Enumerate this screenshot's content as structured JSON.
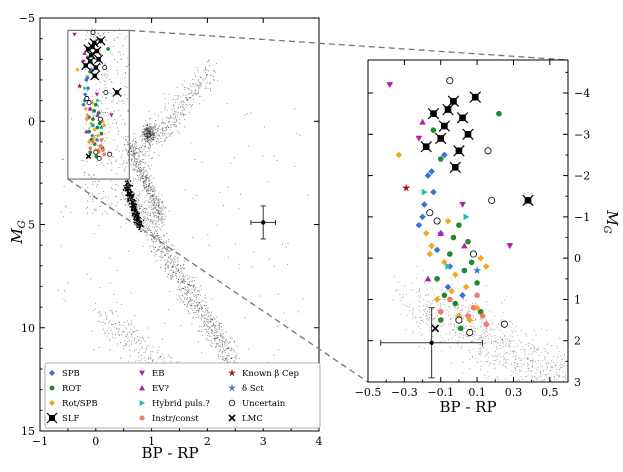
{
  "chart_data": [
    {
      "type": "scatter",
      "title": "",
      "xlabel": "BP - RP",
      "ylabel": "M_G",
      "xlim": [
        -1,
        4
      ],
      "ylim": [
        15,
        -5
      ],
      "x_ticks": [
        "−1",
        "0",
        "1",
        "2",
        "3",
        "4"
      ],
      "y_ticks": [
        "−5",
        "0",
        "5",
        "10",
        "15"
      ],
      "zoom_box": {
        "x": [
          -0.5,
          0.6
        ],
        "y": [
          -4.4,
          2.8
        ]
      },
      "error_bar": {
        "x": 3.0,
        "y": 4.9,
        "xerr": 0.22,
        "yerr": 0.8
      },
      "background": "Gaia color-magnitude diagram field stars (small black dots)"
    },
    {
      "type": "scatter",
      "title": "",
      "xlabel": "BP - RP",
      "ylabel": "M_G",
      "xlim": [
        -0.5,
        0.6
      ],
      "ylim": [
        3,
        -4.8
      ],
      "x_ticks": [
        "−0.5",
        "−0.3",
        "−0.1",
        "0.1",
        "0.3",
        "0.5"
      ],
      "y_ticks": [
        "−4",
        "−3",
        "−2",
        "−1",
        "0",
        "1",
        "2",
        "3"
      ],
      "error_bar": {
        "x": -0.15,
        "y": 2.05,
        "xerr": 0.28,
        "yerr": 0.85
      },
      "series": [
        {
          "name": "SPB",
          "color": "#3b6fd9",
          "marker": "diamond",
          "points": [
            [
              -0.17,
              -2.0
            ],
            [
              -0.14,
              -1.6
            ],
            [
              -0.2,
              -1.0
            ],
            [
              -0.1,
              -0.6
            ],
            [
              -0.12,
              -0.2
            ],
            [
              -0.05,
              0.2
            ],
            [
              -0.19,
              -1.3
            ],
            [
              -0.22,
              -0.8
            ],
            [
              -0.08,
              -2.5
            ],
            [
              -0.15,
              -2.1
            ],
            [
              0.02,
              0.9
            ],
            [
              -0.06,
              0.7
            ]
          ]
        },
        {
          "name": "ROT",
          "color": "#1e8a2a",
          "marker": "circle",
          "points": [
            [
              0.22,
              -3.5
            ],
            [
              -0.14,
              -3.1
            ],
            [
              -0.1,
              -2.4
            ],
            [
              0.0,
              -0.8
            ],
            [
              -0.05,
              -0.1
            ],
            [
              0.03,
              0.3
            ],
            [
              -0.12,
              0.5
            ],
            [
              0.05,
              -0.4
            ],
            [
              -0.02,
              1.1
            ],
            [
              0.1,
              0.6
            ],
            [
              -0.08,
              0.9
            ],
            [
              0.12,
              1.3
            ],
            [
              -0.1,
              1.5
            ],
            [
              0.07,
              0.1
            ],
            [
              -0.03,
              -0.5
            ],
            [
              0.01,
              1.7
            ]
          ]
        },
        {
          "name": "Rot/SPB",
          "color": "#f5a623",
          "marker": "diamond",
          "points": [
            [
              -0.33,
              -2.5
            ],
            [
              -0.18,
              -0.6
            ],
            [
              -0.15,
              -0.3
            ],
            [
              -0.08,
              0.1
            ],
            [
              -0.02,
              0.4
            ],
            [
              0.04,
              0.7
            ],
            [
              -0.12,
              1.0
            ],
            [
              0.1,
              1.2
            ],
            [
              0.12,
              0.0
            ],
            [
              -0.06,
              -0.9
            ],
            [
              0.0,
              1.4
            ],
            [
              0.06,
              1.5
            ],
            [
              -0.16,
              -0.1
            ],
            [
              -0.04,
              0.8
            ],
            [
              0.15,
              0.2
            ]
          ]
        },
        {
          "name": "SLF",
          "color": "#000000",
          "marker": "square",
          "points": [
            [
              -0.14,
              -3.5
            ],
            [
              -0.08,
              -3.2
            ],
            [
              -0.03,
              -3.8
            ],
            [
              0.02,
              -3.4
            ],
            [
              -0.1,
              -2.9
            ],
            [
              0.05,
              -3.0
            ],
            [
              -0.02,
              -2.2
            ],
            [
              0.0,
              -2.6
            ],
            [
              -0.06,
              -3.6
            ],
            [
              0.09,
              -3.9
            ],
            [
              -0.18,
              -2.7
            ],
            [
              0.38,
              -1.4
            ]
          ]
        },
        {
          "name": "EB",
          "color": "#b01fb0",
          "marker": "triangle-down",
          "points": [
            [
              -0.38,
              -4.2
            ],
            [
              0.02,
              -1.3
            ],
            [
              0.28,
              -0.3
            ],
            [
              -0.22,
              -2.9
            ]
          ]
        },
        {
          "name": "EV?",
          "color": "#b01fb0",
          "marker": "triangle-up",
          "points": [
            [
              -0.2,
              -3.3
            ],
            [
              -0.1,
              -0.6
            ],
            [
              -0.17,
              0.5
            ],
            [
              0.03,
              -0.3
            ]
          ]
        },
        {
          "name": "Hybrid puls.?",
          "color": "#1fbfb0",
          "marker": "triangle-right",
          "points": [
            [
              -0.19,
              -1.6
            ],
            [
              0.04,
              -1.0
            ],
            [
              -0.06,
              0.2
            ]
          ]
        },
        {
          "name": "Instr/const",
          "color": "#f07c72",
          "marker": "circle",
          "points": [
            [
              0.1,
              0.9
            ],
            [
              0.08,
              1.2
            ],
            [
              -0.1,
              1.3
            ],
            [
              0.15,
              1.6
            ],
            [
              0.05,
              1.4
            ],
            [
              -0.05,
              1.0
            ],
            [
              0.13,
              1.4
            ]
          ]
        },
        {
          "name": "Known β Cep",
          "color": "#b01010",
          "marker": "star",
          "points": [
            [
              -0.29,
              -1.7
            ]
          ]
        },
        {
          "name": "δ Sct",
          "color": "#2a7fd4",
          "marker": "star",
          "points": [
            [
              0.1,
              0.3
            ]
          ]
        },
        {
          "name": "Uncertain",
          "color": "#000000",
          "marker": "open-circle",
          "points": [
            [
              -0.05,
              -4.3
            ],
            [
              0.16,
              -2.6
            ],
            [
              0.18,
              -1.4
            ],
            [
              -0.16,
              -1.1
            ],
            [
              0.08,
              -0.1
            ],
            [
              0.0,
              1.5
            ],
            [
              0.25,
              1.6
            ],
            [
              0.06,
              1.8
            ],
            [
              -0.12,
              -0.9
            ]
          ]
        },
        {
          "name": "LMC",
          "color": "#000000",
          "marker": "cross",
          "points": [
            [
              -0.13,
              1.7
            ]
          ]
        }
      ]
    }
  ],
  "legend": {
    "entries": [
      {
        "label": "SPB",
        "color": "#3b6fd9",
        "marker": "diamond"
      },
      {
        "label": "ROT",
        "color": "#1e8a2a",
        "marker": "circle"
      },
      {
        "label": "Rot/SPB",
        "color": "#f5a623",
        "marker": "diamond"
      },
      {
        "label": "SLF",
        "color": "#000000",
        "marker": "square"
      },
      {
        "label": "EB",
        "color": "#b01fb0",
        "marker": "triangle-down"
      },
      {
        "label": "EV?",
        "color": "#b01fb0",
        "marker": "triangle-up"
      },
      {
        "label": "Hybrid puls.?",
        "color": "#1fbfb0",
        "marker": "triangle-right"
      },
      {
        "label": "Instr/const",
        "color": "#f07c72",
        "marker": "circle"
      },
      {
        "label": "Known β Cep",
        "color": "#b01010",
        "marker": "star"
      },
      {
        "label": "δ Sct",
        "color": "#2a7fd4",
        "marker": "star"
      },
      {
        "label": "Uncertain",
        "color": "#000000",
        "marker": "open-circle"
      },
      {
        "label": "LMC",
        "color": "#000000",
        "marker": "cross"
      }
    ]
  }
}
